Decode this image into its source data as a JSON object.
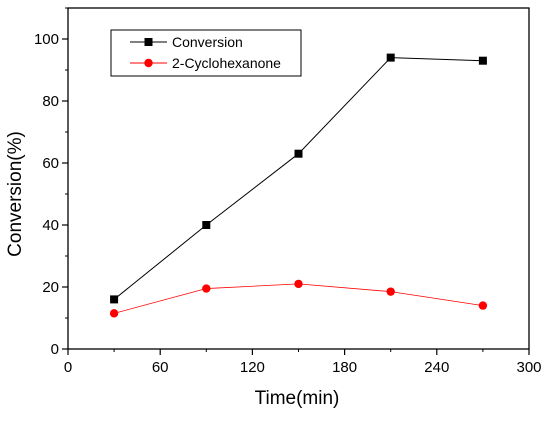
{
  "chart_data": {
    "type": "line",
    "title": "",
    "xlabel": "Time(min)",
    "ylabel": "Conversion(%)",
    "xlim": [
      0,
      300
    ],
    "ylim": [
      0,
      110
    ],
    "x_ticks": [
      0,
      60,
      120,
      180,
      240,
      300
    ],
    "y_ticks": [
      0,
      20,
      40,
      60,
      80,
      100
    ],
    "grid": false,
    "legend_position": "top-left",
    "x": [
      30,
      90,
      150,
      210,
      270
    ],
    "series": [
      {
        "name": "Conversion",
        "values": [
          16,
          40,
          63,
          94,
          93
        ],
        "color": "#000000",
        "marker": "square"
      },
      {
        "name": "2-Cyclohexanone",
        "values": [
          11.5,
          19.5,
          21,
          18.5,
          14
        ],
        "color": "#ff0000",
        "marker": "circle"
      }
    ]
  }
}
